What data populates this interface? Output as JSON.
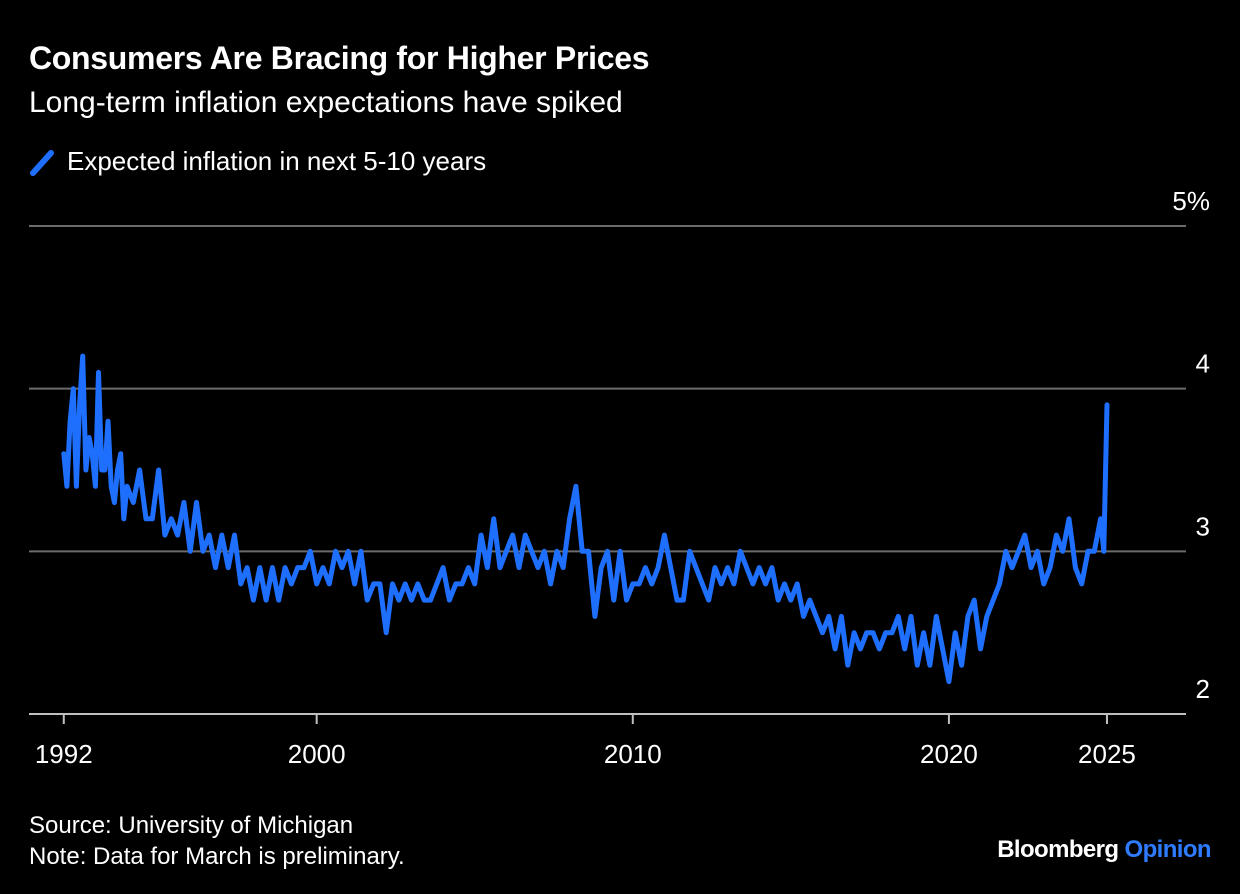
{
  "header": {
    "title": "Consumers Are Bracing for Higher Prices",
    "subtitle": "Long-term inflation expectations have spiked"
  },
  "legend": {
    "label": "Expected inflation in next 5-10 years",
    "color": "#1f6fff"
  },
  "footer": {
    "source": "Source: University of Michigan",
    "note": "Note: Data for March is preliminary.",
    "brand_main": "Bloomberg",
    "brand_accent": "Opinion"
  },
  "chart_data": {
    "type": "line",
    "title": "Consumers Are Bracing for Higher Prices",
    "subtitle": "Long-term inflation expectations have spiked",
    "xlabel": "",
    "ylabel": "",
    "xlim": [
      1990.9,
      2027.5
    ],
    "ylim": [
      2,
      5
    ],
    "y_ticks": [
      {
        "value": 2,
        "label": "2"
      },
      {
        "value": 3,
        "label": "3"
      },
      {
        "value": 4,
        "label": "4"
      },
      {
        "value": 5,
        "label": "5%"
      }
    ],
    "x_ticks": [
      {
        "value": 1992,
        "label": "1992"
      },
      {
        "value": 2000,
        "label": "2000"
      },
      {
        "value": 2010,
        "label": "2010"
      },
      {
        "value": 2020,
        "label": "2020"
      },
      {
        "value": 2025,
        "label": "2025"
      }
    ],
    "grid": "horizontal",
    "legend_position": "top-left",
    "series": [
      {
        "name": "Expected inflation in next 5-10 years",
        "color": "#1f6fff",
        "x": [
          1992.0,
          1992.1,
          1992.2,
          1992.3,
          1992.4,
          1992.5,
          1992.6,
          1992.7,
          1992.8,
          1992.9,
          1993.0,
          1993.1,
          1993.2,
          1993.3,
          1993.4,
          1993.5,
          1993.6,
          1993.7,
          1993.8,
          1993.9,
          1994.0,
          1994.2,
          1994.4,
          1994.6,
          1994.8,
          1995.0,
          1995.2,
          1995.4,
          1995.6,
          1995.8,
          1996.0,
          1996.2,
          1996.4,
          1996.6,
          1996.8,
          1997.0,
          1997.2,
          1997.4,
          1997.6,
          1997.8,
          1998.0,
          1998.2,
          1998.4,
          1998.6,
          1998.8,
          1999.0,
          1999.2,
          1999.4,
          1999.6,
          1999.8,
          2000.0,
          2000.2,
          2000.4,
          2000.6,
          2000.8,
          2001.0,
          2001.2,
          2001.4,
          2001.6,
          2001.8,
          2002.0,
          2002.2,
          2002.4,
          2002.6,
          2002.8,
          2003.0,
          2003.2,
          2003.4,
          2003.6,
          2003.8,
          2004.0,
          2004.2,
          2004.4,
          2004.6,
          2004.8,
          2005.0,
          2005.2,
          2005.4,
          2005.6,
          2005.8,
          2006.0,
          2006.2,
          2006.4,
          2006.6,
          2006.8,
          2007.0,
          2007.2,
          2007.4,
          2007.6,
          2007.8,
          2008.0,
          2008.2,
          2008.4,
          2008.6,
          2008.8,
          2009.0,
          2009.2,
          2009.4,
          2009.6,
          2009.8,
          2010.0,
          2010.2,
          2010.4,
          2010.6,
          2010.8,
          2011.0,
          2011.2,
          2011.4,
          2011.6,
          2011.8,
          2012.0,
          2012.2,
          2012.4,
          2012.6,
          2012.8,
          2013.0,
          2013.2,
          2013.4,
          2013.6,
          2013.8,
          2014.0,
          2014.2,
          2014.4,
          2014.6,
          2014.8,
          2015.0,
          2015.2,
          2015.4,
          2015.6,
          2015.8,
          2016.0,
          2016.2,
          2016.4,
          2016.6,
          2016.8,
          2017.0,
          2017.2,
          2017.4,
          2017.6,
          2017.8,
          2018.0,
          2018.2,
          2018.4,
          2018.6,
          2018.8,
          2019.0,
          2019.2,
          2019.4,
          2019.6,
          2019.8,
          2020.0,
          2020.2,
          2020.4,
          2020.6,
          2020.8,
          2021.0,
          2021.2,
          2021.4,
          2021.6,
          2021.8,
          2022.0,
          2022.2,
          2022.4,
          2022.6,
          2022.8,
          2023.0,
          2023.2,
          2023.4,
          2023.6,
          2023.8,
          2024.0,
          2024.2,
          2024.4,
          2024.6,
          2024.8,
          2024.9,
          2025.0
        ],
        "y": [
          3.6,
          3.4,
          3.8,
          4.0,
          3.4,
          3.9,
          4.2,
          3.5,
          3.7,
          3.6,
          3.4,
          4.1,
          3.5,
          3.5,
          3.8,
          3.4,
          3.3,
          3.5,
          3.6,
          3.2,
          3.4,
          3.3,
          3.5,
          3.2,
          3.2,
          3.5,
          3.1,
          3.2,
          3.1,
          3.3,
          3.0,
          3.3,
          3.0,
          3.1,
          2.9,
          3.1,
          2.9,
          3.1,
          2.8,
          2.9,
          2.7,
          2.9,
          2.7,
          2.9,
          2.7,
          2.9,
          2.8,
          2.9,
          2.9,
          3.0,
          2.8,
          2.9,
          2.8,
          3.0,
          2.9,
          3.0,
          2.8,
          3.0,
          2.7,
          2.8,
          2.8,
          2.5,
          2.8,
          2.7,
          2.8,
          2.7,
          2.8,
          2.7,
          2.7,
          2.8,
          2.9,
          2.7,
          2.8,
          2.8,
          2.9,
          2.8,
          3.1,
          2.9,
          3.2,
          2.9,
          3.0,
          3.1,
          2.9,
          3.1,
          3.0,
          2.9,
          3.0,
          2.8,
          3.0,
          2.9,
          3.2,
          3.4,
          3.0,
          3.0,
          2.6,
          2.9,
          3.0,
          2.7,
          3.0,
          2.7,
          2.8,
          2.8,
          2.9,
          2.8,
          2.9,
          3.1,
          2.9,
          2.7,
          2.7,
          3.0,
          2.9,
          2.8,
          2.7,
          2.9,
          2.8,
          2.9,
          2.8,
          3.0,
          2.9,
          2.8,
          2.9,
          2.8,
          2.9,
          2.7,
          2.8,
          2.7,
          2.8,
          2.6,
          2.7,
          2.6,
          2.5,
          2.6,
          2.4,
          2.6,
          2.3,
          2.5,
          2.4,
          2.5,
          2.5,
          2.4,
          2.5,
          2.5,
          2.6,
          2.4,
          2.6,
          2.3,
          2.5,
          2.3,
          2.6,
          2.4,
          2.2,
          2.5,
          2.3,
          2.6,
          2.7,
          2.4,
          2.6,
          2.7,
          2.8,
          3.0,
          2.9,
          3.0,
          3.1,
          2.9,
          3.0,
          2.8,
          2.9,
          3.1,
          3.0,
          3.2,
          2.9,
          2.8,
          3.0,
          3.0,
          3.2,
          3.0,
          3.9
        ]
      }
    ]
  }
}
